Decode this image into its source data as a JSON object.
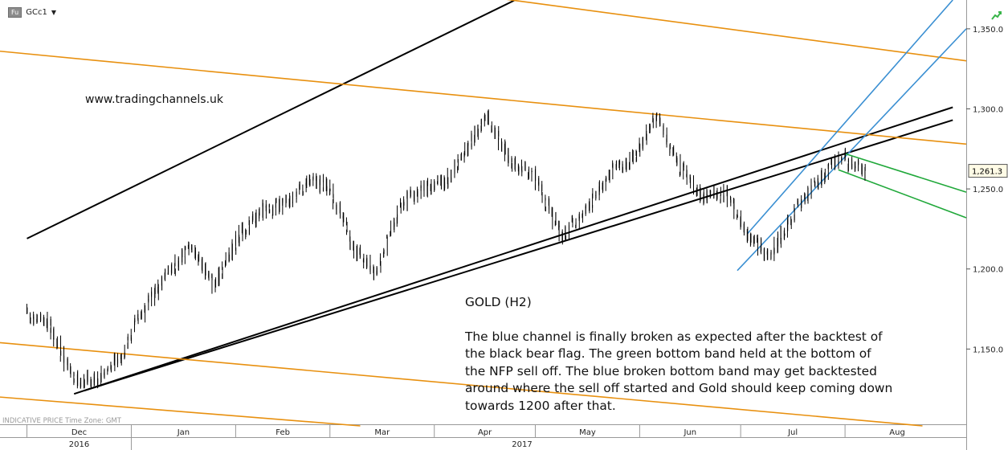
{
  "header": {
    "exchange_badge": "Fu",
    "instrument": "GCc1"
  },
  "watermark": "www.tradingchannels.uk",
  "annotation": {
    "title": "GOLD (H2)",
    "body": "The blue channel is finally broken as expected after the backtest of\nthe black bear flag. The green bottom band held at the bottom of\nthe NFP sell off. The blue broken bottom band may get backtested\naround where the sell off started and Gold should keep coming down\ntowards 1200 after that."
  },
  "footer_info": "INDICATIVE PRICE   Time Zone: GMT",
  "colors": {
    "price": "#000000",
    "black_channel": "#000000",
    "orange": "#e8900f",
    "blue": "#3a8fd2",
    "green": "#20a83a",
    "axis_bg": "#ffffff",
    "frame": "#999999",
    "icon_green": "#3ab54a"
  },
  "chart_data": {
    "type": "line",
    "series_kind": "ohlc-bars",
    "instrument": "GCc1",
    "timeframe": "H2",
    "y_axis": {
      "ticks": [
        1150,
        1200,
        1250,
        1300,
        1350
      ],
      "tick_labels": [
        "1,150.0",
        "1,200.0",
        "1,250.0",
        "1,300.0",
        "1,350.0"
      ],
      "side": "right"
    },
    "ylim": [
      1103,
      1368
    ],
    "last_price": 1261.3,
    "last_price_label": "1,261.3",
    "x_axis": {
      "month_labels": [
        "Dec",
        "Jan",
        "Feb",
        "Mar",
        "Apr",
        "May",
        "Jun",
        "Jul",
        "Aug"
      ],
      "year_labels": [
        "2016",
        "2017"
      ]
    },
    "price_path": [
      {
        "date": "2016-12-01",
        "price": 1172
      },
      {
        "date": "2016-12-08",
        "price": 1165
      },
      {
        "date": "2016-12-15",
        "price": 1130
      },
      {
        "date": "2016-12-22",
        "price": 1132
      },
      {
        "date": "2016-12-29",
        "price": 1145
      },
      {
        "date": "2017-01-05",
        "price": 1175
      },
      {
        "date": "2017-01-12",
        "price": 1198
      },
      {
        "date": "2017-01-19",
        "price": 1215
      },
      {
        "date": "2017-01-26",
        "price": 1190
      },
      {
        "date": "2017-02-02",
        "price": 1220
      },
      {
        "date": "2017-02-09",
        "price": 1236
      },
      {
        "date": "2017-02-16",
        "price": 1240
      },
      {
        "date": "2017-02-23",
        "price": 1255
      },
      {
        "date": "2017-03-01",
        "price": 1252
      },
      {
        "date": "2017-03-08",
        "price": 1215
      },
      {
        "date": "2017-03-15",
        "price": 1198
      },
      {
        "date": "2017-03-22",
        "price": 1240
      },
      {
        "date": "2017-03-29",
        "price": 1250
      },
      {
        "date": "2017-04-05",
        "price": 1255
      },
      {
        "date": "2017-04-12",
        "price": 1280
      },
      {
        "date": "2017-04-17",
        "price": 1295
      },
      {
        "date": "2017-04-24",
        "price": 1268
      },
      {
        "date": "2017-05-01",
        "price": 1258
      },
      {
        "date": "2017-05-09",
        "price": 1220
      },
      {
        "date": "2017-05-16",
        "price": 1235
      },
      {
        "date": "2017-05-23",
        "price": 1260
      },
      {
        "date": "2017-05-30",
        "price": 1268
      },
      {
        "date": "2017-06-06",
        "price": 1296
      },
      {
        "date": "2017-06-13",
        "price": 1265
      },
      {
        "date": "2017-06-20",
        "price": 1245
      },
      {
        "date": "2017-06-27",
        "price": 1248
      },
      {
        "date": "2017-07-03",
        "price": 1222
      },
      {
        "date": "2017-07-10",
        "price": 1208
      },
      {
        "date": "2017-07-17",
        "price": 1235
      },
      {
        "date": "2017-07-24",
        "price": 1255
      },
      {
        "date": "2017-07-31",
        "price": 1270
      },
      {
        "date": "2017-08-04",
        "price": 1264
      },
      {
        "date": "2017-08-08",
        "price": 1261.3
      }
    ],
    "trendlines": [
      {
        "group": "black",
        "start": {
          "date": "2016-12-01",
          "price": 1219
        },
        "end": {
          "date": "2017-04-25",
          "price": 1368
        }
      },
      {
        "group": "black",
        "start": {
          "date": "2016-12-15",
          "price": 1122
        },
        "end": {
          "date": "2017-09-02",
          "price": 1301
        }
      },
      {
        "group": "black",
        "start": {
          "date": "2016-12-18",
          "price": 1124
        },
        "end": {
          "date": "2017-09-02",
          "price": 1293
        }
      },
      {
        "group": "orange",
        "start": {
          "date": "2016-11-23",
          "price": 1336
        },
        "end": {
          "date": "2017-09-06",
          "price": 1278
        }
      },
      {
        "group": "orange",
        "start": {
          "date": "2017-03-30",
          "price": 1375
        },
        "end": {
          "date": "2017-09-06",
          "price": 1330
        }
      },
      {
        "group": "orange",
        "start": {
          "date": "2016-11-23",
          "price": 1154
        },
        "end": {
          "date": "2017-08-24",
          "price": 1102
        }
      },
      {
        "group": "orange",
        "start": {
          "date": "2016-11-23",
          "price": 1120
        },
        "end": {
          "date": "2017-03-10",
          "price": 1102
        }
      },
      {
        "group": "blue",
        "start": {
          "date": "2017-07-03",
          "price": 1222
        },
        "end": {
          "date": "2017-09-02",
          "price": 1368
        }
      },
      {
        "group": "blue",
        "start": {
          "date": "2017-06-30",
          "price": 1199
        },
        "end": {
          "date": "2017-09-06",
          "price": 1350
        }
      },
      {
        "group": "green",
        "start": {
          "date": "2017-08-01",
          "price": 1272
        },
        "end": {
          "date": "2017-09-06",
          "price": 1248
        }
      },
      {
        "group": "green",
        "start": {
          "date": "2017-07-30",
          "price": 1262
        },
        "end": {
          "date": "2017-09-06",
          "price": 1232
        }
      }
    ]
  }
}
